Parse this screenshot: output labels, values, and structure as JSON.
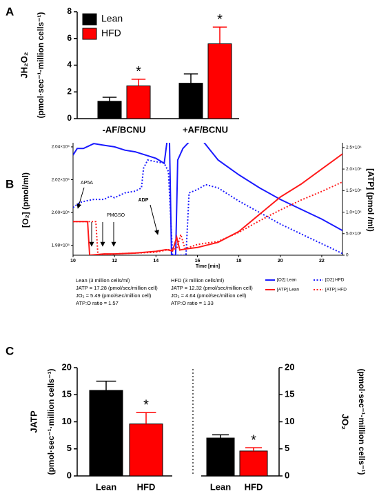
{
  "chart_data": [
    {
      "type": "bar",
      "panel_label": "A",
      "ylabel": "JH₂O₂",
      "ylabel_unit": "(pmol·sec⁻¹·million cells⁻¹)",
      "categories": [
        "-AF/BCNU",
        "+AF/BCNU"
      ],
      "series": [
        {
          "name": "Lean",
          "color": "#000000",
          "values": [
            1.3,
            2.65
          ],
          "errors": [
            0.3,
            0.7
          ]
        },
        {
          "name": "HFD",
          "color": "#ff0000",
          "values": [
            2.45,
            5.6
          ],
          "errors": [
            0.5,
            1.25
          ],
          "annotations": [
            "*",
            "*"
          ]
        }
      ],
      "ylim": [
        0,
        8
      ],
      "yticks": [
        0,
        2,
        4,
        6,
        8
      ]
    },
    {
      "type": "line",
      "panel_label": "B",
      "xlabel": "Time [min]",
      "ylabel": "[O₂]  (pmol/ml)",
      "y2label": "[ATP]  (pmol /ml)",
      "xlim": [
        10,
        23
      ],
      "xticks": [
        10,
        12,
        14,
        16,
        18,
        20,
        22
      ],
      "ylim": [
        197400,
        204250
      ],
      "yticks": [
        {
          "value": 198000,
          "label": "1.98×10⁵"
        },
        {
          "value": 200000,
          "label": "2.00×10⁵"
        },
        {
          "value": 202000,
          "label": "2.02×10⁵"
        },
        {
          "value": 204000,
          "label": "2.04×10⁵"
        }
      ],
      "y2lim": [
        0,
        26100
      ],
      "y2ticks": [
        0,
        {
          "value": 5000,
          "label": "5.0×10³"
        },
        {
          "value": 10000,
          "label": "1.0×10⁴"
        },
        {
          "value": 15000,
          "label": "1.5×10⁴"
        },
        {
          "value": 20000,
          "label": "2.0×10⁴"
        },
        {
          "value": 25000,
          "label": "2.5×10⁴"
        }
      ],
      "series": [
        {
          "name": "[O2]  Lean",
          "color": "#1a1aff",
          "style": "solid",
          "x": [
            10,
            10.2,
            10.5,
            11,
            11.5,
            12,
            12.5,
            13,
            13.5,
            14,
            14.4,
            14.55,
            14.65,
            14.75,
            14.95,
            15.05,
            15.3,
            15.6,
            15.9,
            16.3,
            17,
            18,
            19,
            20,
            21,
            22,
            23
          ],
          "values": [
            203500,
            203900,
            203900,
            204200,
            204100,
            204000,
            203800,
            203700,
            203500,
            203300,
            203000,
            204500,
            204500,
            197400,
            197400,
            203200,
            203900,
            204300,
            204500,
            204300,
            203200,
            202300,
            201500,
            200800,
            200200,
            199600,
            198900
          ]
        },
        {
          "name": "[O2]  HFD",
          "color": "#1a1aff",
          "style": "dotted",
          "x": [
            10,
            10.3,
            10.6,
            11,
            11.5,
            11.8,
            12,
            12.5,
            13,
            13.3,
            13.4,
            13.6,
            14,
            14.4,
            14.6,
            14.8,
            15.2,
            15.45,
            15.6,
            16,
            16.4,
            17,
            18,
            19,
            20,
            21,
            22,
            23
          ],
          "values": [
            200300,
            200600,
            200700,
            200800,
            200800,
            201000,
            200900,
            201200,
            201300,
            201500,
            202700,
            203200,
            203100,
            203000,
            202500,
            197400,
            197400,
            197400,
            201200,
            201400,
            201700,
            201500,
            200700,
            200000,
            199300,
            198700,
            198100,
            197500
          ]
        },
        {
          "name": "[ATP]  Lean",
          "color": "#ff1a1a",
          "style": "solid",
          "axis": "y2",
          "x": [
            10,
            10.7,
            10.8,
            11.5,
            12,
            13,
            14,
            14.5,
            14.8,
            15,
            15.15,
            15.5,
            16,
            17,
            18,
            19,
            20,
            21,
            22,
            23
          ],
          "values": [
            7800,
            7800,
            0,
            300,
            300,
            500,
            900,
            1300,
            1000,
            4200,
            1200,
            1500,
            1800,
            3000,
            5500,
            9500,
            13500,
            16500,
            20000,
            23500
          ]
        },
        {
          "name": "[ATP]  HFD",
          "color": "#ff1a1a",
          "style": "dotted",
          "axis": "y2",
          "x": [
            10,
            11.1,
            11.2,
            11.7,
            12,
            13,
            14,
            14.5,
            15,
            15.2,
            15.4,
            16,
            17,
            18,
            19,
            20,
            21,
            22,
            23
          ],
          "values": [
            7800,
            7800,
            0,
            0,
            300,
            500,
            700,
            1200,
            1500,
            4800,
            1500,
            2500,
            3200,
            5300,
            8000,
            10500,
            12800,
            14800,
            17000
          ]
        }
      ],
      "annotations": [
        {
          "text": "AP5A",
          "color": "#000000"
        },
        {
          "text": "PMGSO",
          "color": "#000000"
        },
        {
          "text": "ADP",
          "color": "#1a1aff"
        }
      ],
      "notes": [
        [
          {
            "text": "Lean   (3 million cells/ml)",
            "color": "#000000"
          },
          {
            "text": "JATP = 17.28 (pmol/sec/million cell)",
            "color": "#ff0000"
          },
          {
            "text": "JO₂ = 5.49 (pmol/sec/million cell)",
            "color": "#1a1aff"
          },
          {
            "text": "ATP:O ratio = 1.57",
            "color": "#000000"
          }
        ],
        [
          {
            "text": "HFD   (3 million cells/ml)",
            "color": "#000000"
          },
          {
            "text": "JATP = 12.32 (pmol/sec/million cell)",
            "color": "#ff0000"
          },
          {
            "text": "JO₂ = 4.64 (pmol/sec/million cell)",
            "color": "#1a1aff"
          },
          {
            "text": "ATP:O ratio = 1.33",
            "color": "#000000"
          }
        ]
      ]
    },
    {
      "type": "bar",
      "panel_label": "C",
      "ylabel": "JATP",
      "ylabel_unit": "(pmol·sec⁻¹·million cells⁻¹)",
      "categories": [
        "Lean",
        "HFD"
      ],
      "colors": [
        "#000000",
        "#ff0000"
      ],
      "values": [
        15.8,
        9.6
      ],
      "errors": [
        1.7,
        2.1
      ],
      "annotations": [
        null,
        "*"
      ],
      "ylim": [
        0,
        20
      ],
      "yticks": [
        0,
        5,
        10,
        15,
        20
      ]
    },
    {
      "type": "bar",
      "ylabel": "JO₂",
      "ylabel_unit": "(pmol·sec⁻¹·million cells⁻¹)",
      "categories": [
        "Lean",
        "HFD"
      ],
      "colors": [
        "#000000",
        "#ff0000"
      ],
      "values": [
        7.0,
        4.6
      ],
      "errors": [
        0.6,
        0.6
      ],
      "annotations": [
        null,
        "*"
      ],
      "ylim": [
        0,
        20
      ],
      "yticks": [
        0,
        5,
        10,
        15,
        20
      ]
    }
  ]
}
